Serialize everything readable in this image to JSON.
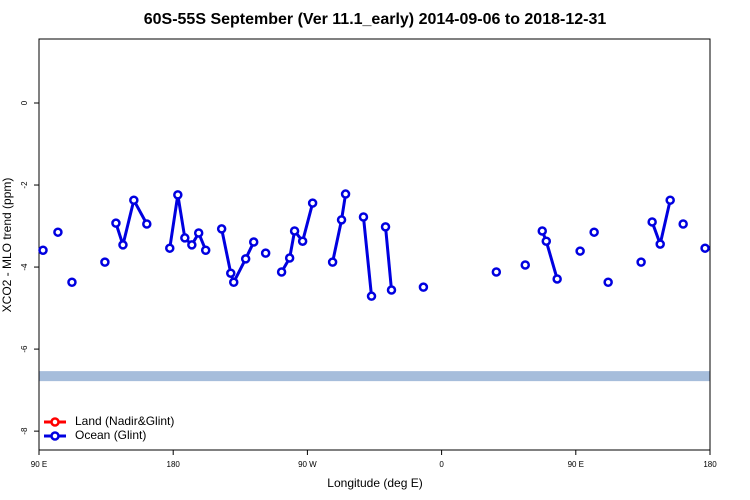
{
  "chart_data": {
    "type": "line",
    "title": "60S-55S September (Ver 11.1_early)   2014-09-06 to 2018-12-31",
    "x_label": "Longitude (deg E)",
    "y_label": "XCO2 - MLO trend (ppm)",
    "xlim": [
      90,
      540
    ],
    "ylim": [
      -8.46,
      1.56
    ],
    "xticks": [
      {
        "value": 90,
        "label": "90 E"
      },
      {
        "value": 180,
        "label": "180"
      },
      {
        "value": 270,
        "label": "90 W"
      },
      {
        "value": 360,
        "label": "0"
      },
      {
        "value": 450,
        "label": "90 E"
      },
      {
        "value": 540,
        "label": "180"
      }
    ],
    "yticks": [
      0,
      -2,
      -4,
      -6,
      -8
    ],
    "reference_line": {
      "value": -6.66,
      "color": "#a6bddb"
    },
    "legend": "bottomleft",
    "series": [
      {
        "name": "Land (Nadir&Glint)",
        "color": "#ff0000",
        "x": [],
        "values": []
      },
      {
        "name": "Ocean (Glint)",
        "color": "#0000e0",
        "x": [
          92.7,
          null,
          102.7,
          null,
          112.1,
          null,
          134.2,
          null,
          141.6,
          146.3,
          153.6,
          162.3,
          null,
          177.7,
          183.1,
          187.8,
          192.5,
          197.1,
          201.8,
          null,
          212.5,
          218.6,
          220.6,
          228.6,
          234.0,
          null,
          242.0,
          null,
          252.7,
          258.1,
          261.4,
          266.8,
          273.5,
          null,
          286.9,
          292.9,
          295.6,
          null,
          307.6,
          313.0,
          null,
          322.4,
          326.4,
          null,
          347.8,
          null,
          396.7,
          null,
          416.1,
          null,
          427.5,
          430.2,
          437.5,
          null,
          452.9,
          null,
          462.3,
          null,
          471.7,
          null,
          493.8,
          null,
          501.2,
          506.6,
          513.3,
          null,
          522.0,
          null,
          536.7
        ],
        "values": [
          -3.59,
          null,
          -3.15,
          null,
          -4.37,
          null,
          -3.88,
          null,
          -2.93,
          -3.46,
          -2.37,
          -2.95,
          null,
          -3.54,
          -2.24,
          -3.29,
          -3.46,
          -3.17,
          -3.59,
          null,
          -3.07,
          -4.15,
          -4.37,
          -3.8,
          -3.39,
          null,
          -3.66,
          null,
          -4.12,
          -3.78,
          -3.12,
          -3.37,
          -2.44,
          null,
          -3.88,
          -2.85,
          -2.22,
          null,
          -2.78,
          -4.71,
          null,
          -3.02,
          -4.56,
          null,
          -4.49,
          null,
          -4.12,
          null,
          -3.95,
          null,
          -3.12,
          -3.37,
          -4.29,
          null,
          -3.61,
          null,
          -3.15,
          null,
          -4.37,
          null,
          -3.88,
          null,
          -2.9,
          -3.44,
          -2.37,
          null,
          -2.95,
          null,
          -3.54
        ]
      }
    ]
  }
}
